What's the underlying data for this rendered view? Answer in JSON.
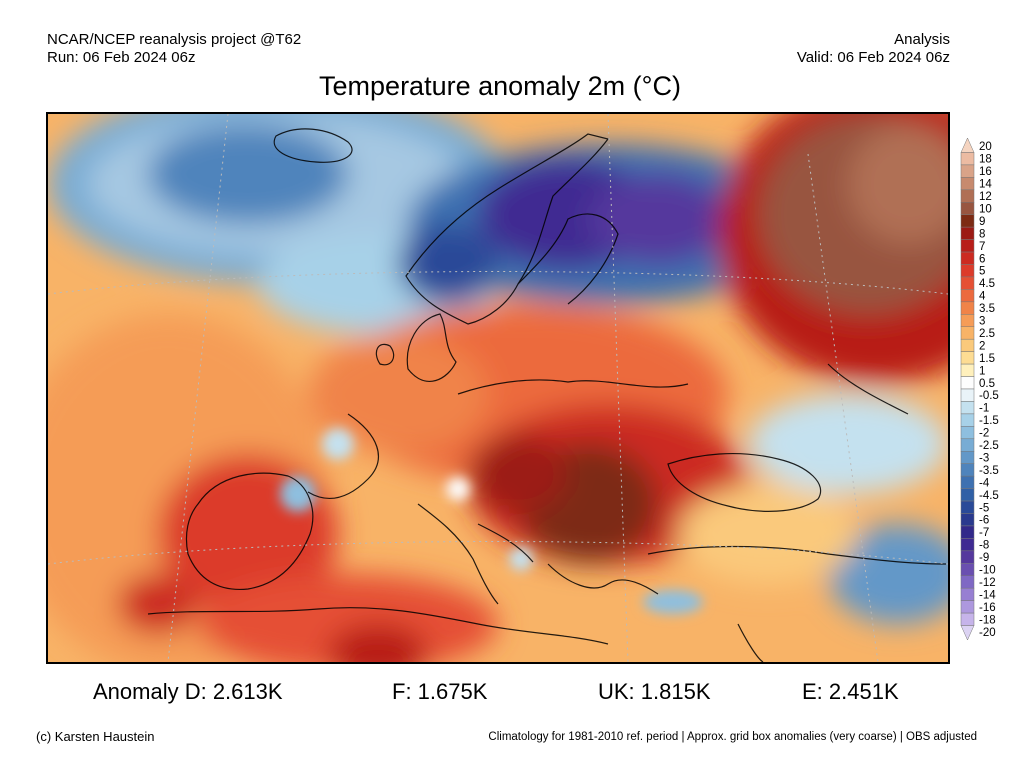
{
  "header": {
    "source": "NCAR/NCEP reanalysis project @T62",
    "run": "Run: 06 Feb 2024 06z",
    "type": "Analysis",
    "valid": "Valid: 06 Feb 2024 06z"
  },
  "title": "Temperature anomaly 2m (°C)",
  "legend": {
    "labels": [
      "20",
      "18",
      "16",
      "14",
      "12",
      "10",
      "9",
      "8",
      "7",
      "6",
      "5",
      "4.5",
      "4",
      "3.5",
      "3",
      "2.5",
      "2",
      "1.5",
      "1",
      "0.5",
      "-0.5",
      "-1",
      "-1.5",
      "-2",
      "-2.5",
      "-3",
      "-3.5",
      "-4",
      "-4.5",
      "-5",
      "-6",
      "-7",
      "-8",
      "-9",
      "-10",
      "-12",
      "-14",
      "-16",
      "-18",
      "-20"
    ],
    "colors": [
      "#f5d4c0",
      "#ecbba2",
      "#d9a388",
      "#c78a6e",
      "#b06f55",
      "#985540",
      "#7d2b14",
      "#9c1a14",
      "#b81e19",
      "#cc2a21",
      "#dc3b2b",
      "#e55034",
      "#ec6a3e",
      "#f08348",
      "#f59c57",
      "#f8b367",
      "#fac97b",
      "#fddc93",
      "#fff0bc",
      "#fdfdfd",
      "#e9f3f8",
      "#c4e1ef",
      "#a7d1e8",
      "#8ebfdf",
      "#78acd4",
      "#6398c8",
      "#4f84bc",
      "#3e71b1",
      "#3060a6",
      "#2a4a98",
      "#2a3a8e",
      "#32298a",
      "#3f2a92",
      "#55389d",
      "#6a4fb0",
      "#7f68c4",
      "#977fd2",
      "#ad98de",
      "#c6b4ea",
      "#dcd3f3"
    ]
  },
  "stats": {
    "d": "Anomaly D: 2.613K",
    "f": "F: 1.675K",
    "uk": "UK: 1.815K",
    "e": "E: 2.451K"
  },
  "footer": {
    "credit": "(c) Karsten Haustein",
    "note": "Climatology for 1981-2010 ref. period | Approx. grid box anomalies (very coarse) | OBS adjusted"
  }
}
